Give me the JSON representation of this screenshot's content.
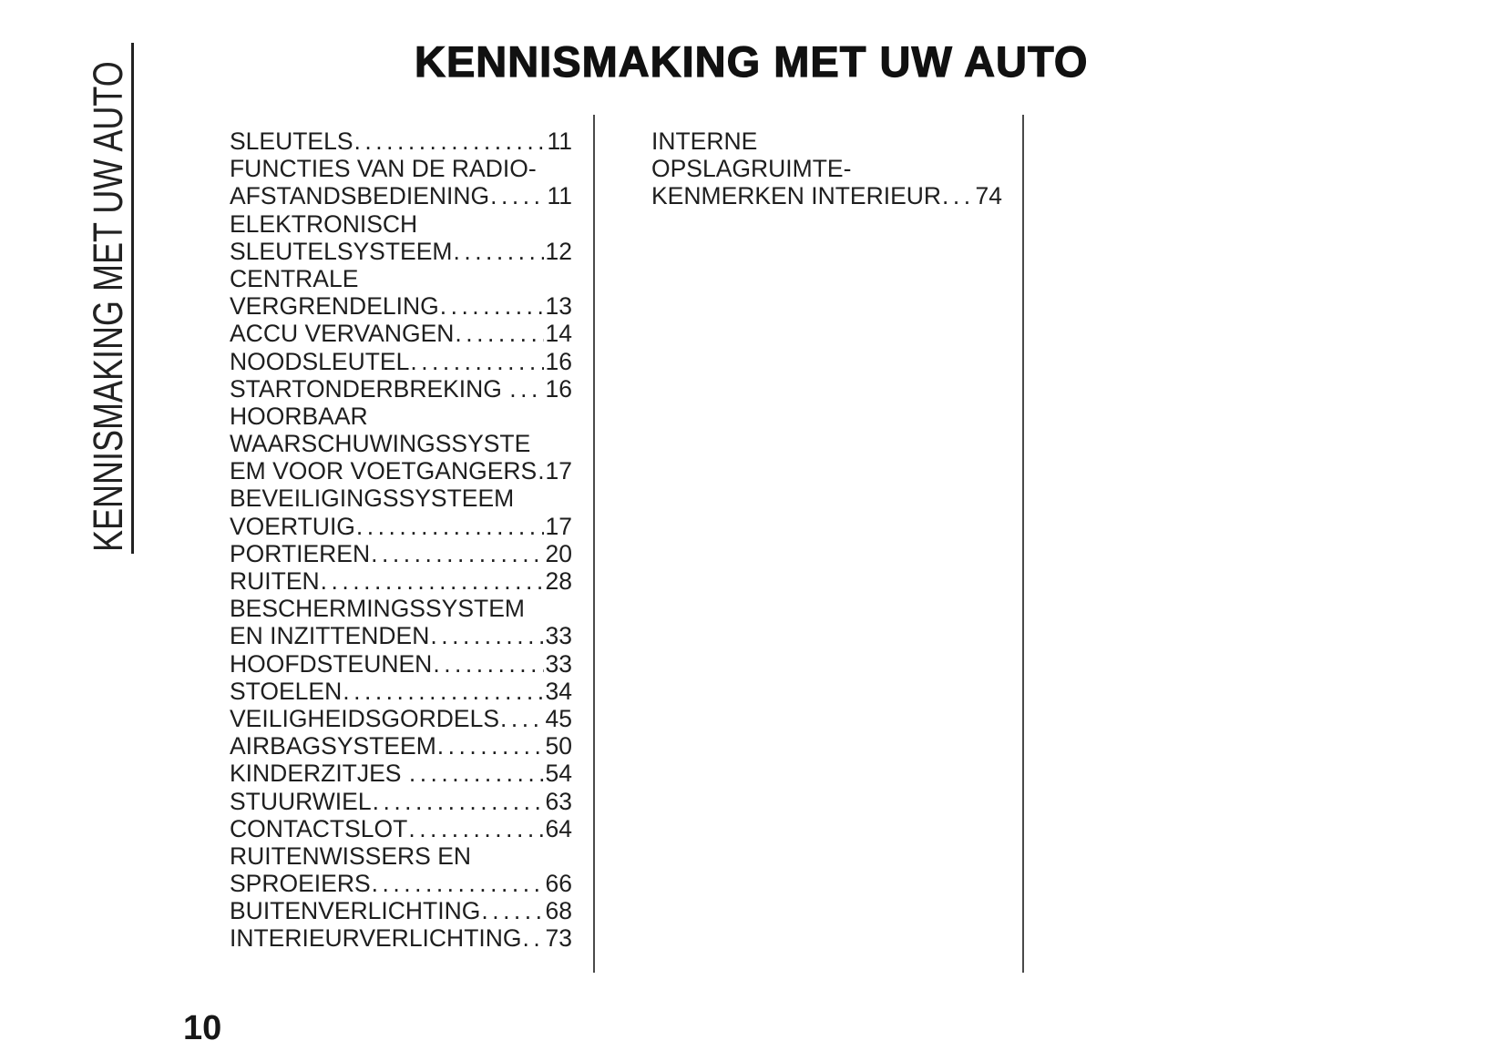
{
  "page": {
    "title": "KENNISMAKING MET UW AUTO",
    "sidebar_label": "KENNISMAKING MET UW AUTO",
    "page_number": "10",
    "leader_char": "."
  },
  "colors": {
    "text": "#1e1e1e",
    "title": "#111111",
    "divider": "#4a4a4a",
    "rule": "#222222",
    "bg": "#ffffff"
  },
  "toc": {
    "columns": [
      {
        "entries": [
          {
            "lines": [
              "SLEUTELS"
            ],
            "page": "11"
          },
          {
            "lines": [
              "FUNCTIES VAN DE RADIO-",
              "AFSTANDSBEDIENING"
            ],
            "page": "11"
          },
          {
            "lines": [
              "ELEKTRONISCH",
              "SLEUTELSYSTEEM"
            ],
            "page": "12"
          },
          {
            "lines": [
              "CENTRALE",
              "VERGRENDELING"
            ],
            "page": "13"
          },
          {
            "lines": [
              "ACCU VERVANGEN"
            ],
            "page": "14"
          },
          {
            "lines": [
              "NOODSLEUTEL"
            ],
            "page": "16"
          },
          {
            "lines": [
              "STARTONDERBREKING "
            ],
            "page": "16"
          },
          {
            "lines": [
              "HOORBAAR",
              "WAARSCHUWINGSSYSTE",
              "EM VOOR VOETGANGERS"
            ],
            "page": "17"
          },
          {
            "lines": [
              "BEVEILIGINGSSYSTEEM",
              "VOERTUIG"
            ],
            "page": "17"
          },
          {
            "lines": [
              "PORTIEREN"
            ],
            "page": "20"
          },
          {
            "lines": [
              "RUITEN"
            ],
            "page": "28"
          },
          {
            "lines": [
              "BESCHERMINGSSYSTEM",
              "EN INZITTENDEN"
            ],
            "page": "33"
          },
          {
            "lines": [
              "HOOFDSTEUNEN"
            ],
            "page": "33"
          },
          {
            "lines": [
              "STOELEN"
            ],
            "page": "34"
          },
          {
            "lines": [
              "VEILIGHEIDSGORDELS"
            ],
            "page": "45"
          },
          {
            "lines": [
              "AIRBAGSYSTEEM"
            ],
            "page": "50"
          },
          {
            "lines": [
              "KINDERZITJES "
            ],
            "page": "54"
          },
          {
            "lines": [
              "STUURWIEL"
            ],
            "page": "63"
          },
          {
            "lines": [
              "CONTACTSLOT"
            ],
            "page": "64"
          },
          {
            "lines": [
              "RUITENWISSERS EN",
              "SPROEIERS"
            ],
            "page": "66"
          },
          {
            "lines": [
              "BUITENVERLICHTING"
            ],
            "page": "68"
          },
          {
            "lines": [
              "INTERIEURVERLICHTING"
            ],
            "page": "73"
          }
        ]
      },
      {
        "entries": [
          {
            "lines": [
              "INTERNE",
              "OPSLAGRUIMTE-",
              "KENMERKEN INTERIEUR"
            ],
            "page": "74"
          }
        ]
      }
    ]
  }
}
